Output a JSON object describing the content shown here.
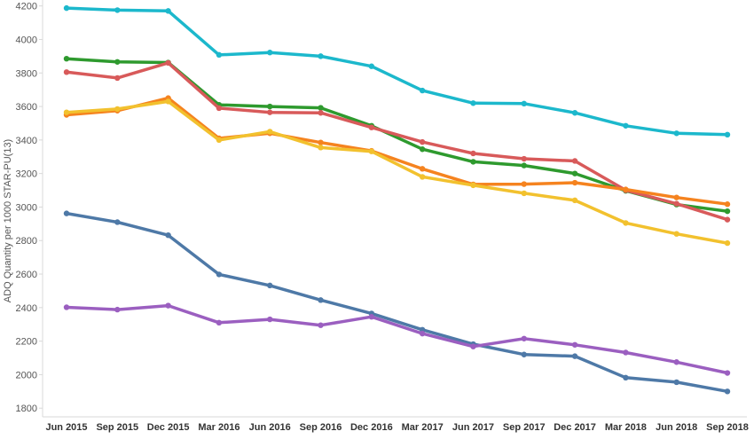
{
  "chart_data": {
    "type": "line",
    "title": "",
    "xlabel": "",
    "ylabel": "ADQ Quantity per 1000 STAR-PU(13)",
    "categories": [
      "Jun 2015",
      "Sep 2015",
      "Dec 2015",
      "Mar 2016",
      "Jun 2016",
      "Sep 2016",
      "Dec 2016",
      "Mar 2017",
      "Jun 2017",
      "Sep 2017",
      "Dec 2017",
      "Mar 2018",
      "Jun 2018",
      "Sep 2018"
    ],
    "ylim": [
      1780,
      4230
    ],
    "yticks": [
      1800,
      2000,
      2200,
      2400,
      2600,
      2800,
      3000,
      3200,
      3400,
      3600,
      3800,
      4000,
      4200
    ],
    "grid": false,
    "legend": "none",
    "series": [
      {
        "color": "#1CB8CC",
        "values": [
          4187,
          4175,
          4170,
          3908,
          3922,
          3900,
          3840,
          3695,
          3620,
          3617,
          3562,
          3485,
          3440,
          3432
        ]
      },
      {
        "color": "#2E9A2E",
        "values": [
          3885,
          3866,
          3862,
          3610,
          3600,
          3592,
          3485,
          3345,
          3270,
          3248,
          3200,
          3097,
          3015,
          2975
        ]
      },
      {
        "color": "#D85A5A",
        "values": [
          3805,
          3770,
          3860,
          3590,
          3565,
          3562,
          3475,
          3388,
          3320,
          3288,
          3275,
          3100,
          3020,
          2925
        ]
      },
      {
        "color": "#F5831F",
        "values": [
          3550,
          3575,
          3650,
          3410,
          3440,
          3385,
          3335,
          3228,
          3135,
          3137,
          3145,
          3105,
          3057,
          3017
        ]
      },
      {
        "color": "#F2C12E",
        "values": [
          3565,
          3585,
          3630,
          3400,
          3450,
          3355,
          3332,
          3180,
          3130,
          3082,
          3040,
          2905,
          2840,
          2785
        ]
      },
      {
        "color": "#4E79A7",
        "values": [
          2962,
          2910,
          2832,
          2598,
          2532,
          2445,
          2365,
          2268,
          2182,
          2120,
          2110,
          1982,
          1955,
          1900
        ]
      },
      {
        "color": "#9B5FC0",
        "values": [
          2402,
          2388,
          2412,
          2310,
          2330,
          2295,
          2345,
          2245,
          2168,
          2215,
          2178,
          2132,
          2075,
          2010
        ]
      }
    ]
  }
}
